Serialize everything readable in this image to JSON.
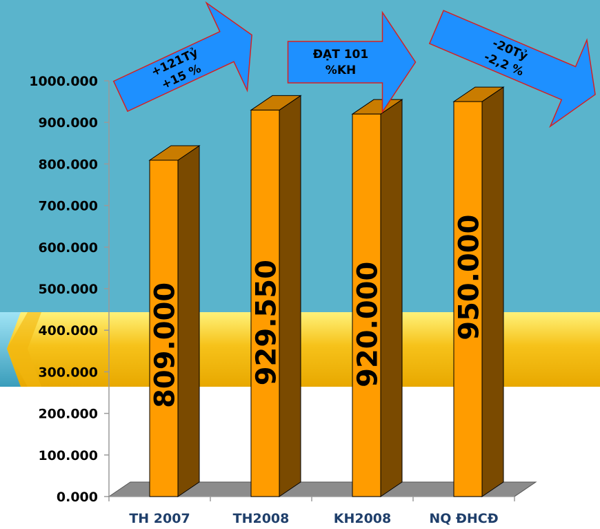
{
  "chart_data": {
    "type": "bar",
    "categories": [
      "TH 2007",
      "TH2008",
      "KH2008",
      "NQ ĐHCĐ"
    ],
    "values": [
      809000,
      929550,
      920000,
      950000
    ],
    "value_labels": [
      "809.000",
      "929.550",
      "920.000",
      "950.000"
    ],
    "ylim": [
      0,
      1000000
    ],
    "yticks": [
      0,
      100000,
      200000,
      300000,
      400000,
      500000,
      600000,
      700000,
      800000,
      900000,
      1000000
    ],
    "ytick_labels": [
      "0.000",
      "100.000",
      "200.000",
      "300.000",
      "400.000",
      "500.000",
      "600.000",
      "700.000",
      "800.000",
      "900.000",
      "1000.000"
    ],
    "grid": false,
    "annotations": [
      {
        "line1": "+121Tỷ",
        "line2": "+15 %"
      },
      {
        "line1": "ĐẠT 101",
        "line2": "%KH"
      },
      {
        "line1": "-20Tỷ",
        "line2": "-2,2 %"
      }
    ]
  },
  "colors": {
    "background_blue": "#5AB4CC",
    "background_white": "#FFFFFF",
    "band_yellow": "#F6C21A",
    "bar_front": "#FF9C00",
    "bar_side": "#7A4A00",
    "bar_top": "#C97C00",
    "floor": "#8C8C8C",
    "arrow_fill": "#1E90FF",
    "arrow_stroke": "#D62020",
    "category_text": "#1F3F6B"
  }
}
